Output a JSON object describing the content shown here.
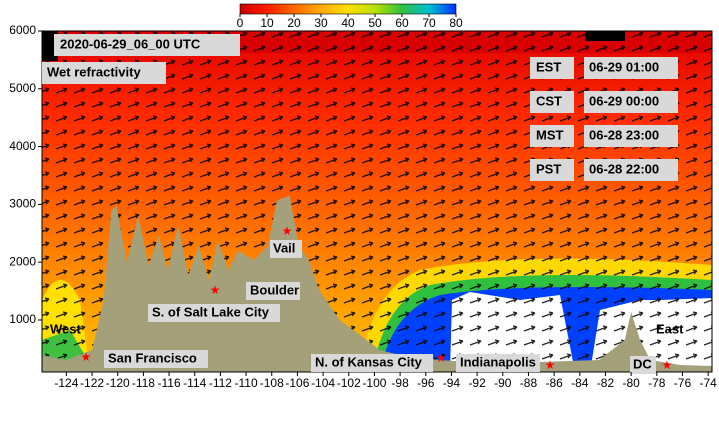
{
  "chart_data": {
    "type": "cross-section",
    "title": "2020-06-29_06_00 UTC",
    "subtitle": "Wet refractivity",
    "xlim": [
      -125.9,
      -73.7
    ],
    "xticks": [
      -124,
      -122,
      -120,
      -118,
      -116,
      -114,
      -112,
      -110,
      -108,
      -106,
      -104,
      -102,
      -100,
      -98,
      -96,
      -94,
      -92,
      -90,
      -88,
      -86,
      -84,
      -82,
      -80,
      -78,
      -76,
      -74
    ],
    "ylim": [
      100,
      6000
    ],
    "yticks": [
      1000,
      2000,
      3000,
      4000,
      5000,
      6000
    ],
    "colorbar": {
      "lim": [
        0,
        80
      ],
      "ticks": [
        0,
        10,
        20,
        30,
        40,
        50,
        60,
        70,
        80
      ],
      "colors": [
        "#c80000",
        "#ff1a00",
        "#ff6a00",
        "#ffaa00",
        "#ffe000",
        "#b8e000",
        "#30c040",
        "#00c0d0",
        "#0030ff"
      ]
    },
    "terrain": {
      "color": "#a3a07a",
      "x": [
        -125.9,
        -124,
        -122,
        -121.1,
        -120.5,
        -120.1,
        -119.3,
        -118.4,
        -117.6,
        -116.8,
        -116.1,
        -115.3,
        -114.5,
        -113.7,
        -112.9,
        -112.2,
        -111.4,
        -110.6,
        -109.4,
        -108.3,
        -107.6,
        -106.6,
        -105.9,
        -105.1,
        -104.3,
        -102.7,
        -101.1,
        -99.6,
        -98,
        -96.4,
        -94.9,
        -92.6,
        -90.2,
        -87.1,
        -82.5,
        -80.5,
        -80,
        -79.3,
        -78.5,
        -76.2,
        -73.7
      ],
      "y": [
        393,
        307,
        480,
        1342,
        2895,
        2981,
        1998,
        2808,
        1946,
        2463,
        1860,
        2636,
        1773,
        2291,
        1687,
        2377,
        1860,
        2205,
        2032,
        2291,
        3067,
        3153,
        2291,
        2032,
        1515,
        997,
        738,
        480,
        393,
        342,
        307,
        273,
        238,
        273,
        307,
        652,
        1135,
        652,
        307,
        221,
        203
      ]
    },
    "cities": [
      "San Francisco",
      "S. of Salt Lake City",
      "Vail",
      "Boulder",
      "N. of Kansas City",
      "Indianapolis",
      "DC"
    ],
    "region_labels": [
      "West",
      "East"
    ],
    "time_zones": [
      {
        "zone": "EST",
        "time": "06-29 01:00"
      },
      {
        "zone": "CST",
        "time": "06-29 00:00"
      },
      {
        "zone": "MST",
        "time": "06-28 23:00"
      },
      {
        "zone": "PST",
        "time": "06-28 22:00"
      }
    ]
  }
}
